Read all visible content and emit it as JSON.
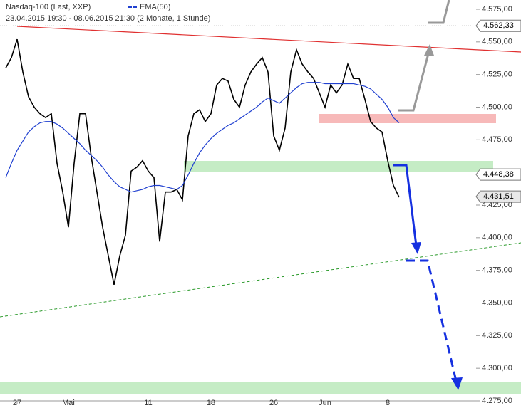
{
  "chart_data": {
    "type": "line",
    "title": "Nasdaq-100 (Last, XXP)",
    "subtitle": "23.04.2015 19:30 - 08.06.2015 21:30 (2 Monate, 1 Stunde)",
    "categories": [
      null,
      null,
      "27",
      null,
      null,
      null,
      null,
      null,
      null,
      null,
      null,
      "Mai",
      null,
      null,
      null,
      null,
      null,
      null,
      null,
      null,
      null,
      null,
      null,
      null,
      null,
      "11",
      null,
      null,
      null,
      null,
      null,
      null,
      null,
      null,
      null,
      null,
      "18",
      null,
      null,
      null,
      null,
      null,
      null,
      null,
      null,
      null,
      null,
      "26",
      null,
      null,
      null,
      null,
      null,
      null,
      null,
      null,
      "Jun",
      null,
      null,
      null,
      null,
      null,
      null,
      null,
      null,
      null,
      null,
      "8",
      null,
      null
    ],
    "series": [
      {
        "name": "Nasdaq-100",
        "color": "#000000",
        "values": [
          4530,
          4538,
          4552,
          4527,
          4508,
          4500,
          4495,
          4492,
          4495,
          4457,
          4435,
          4408,
          4457,
          4495,
          4495,
          4462,
          4435,
          4408,
          4386,
          4364,
          4386,
          4402,
          4451,
          4454,
          4459,
          4451,
          4446,
          4397,
          4435,
          4435,
          4437,
          4429,
          4478,
          4495,
          4498,
          4489,
          4495,
          4517,
          4522,
          4520,
          4506,
          4500,
          4517,
          4527,
          4533,
          4538,
          4527,
          4478,
          4467,
          4484,
          4527,
          4544,
          4533,
          4527,
          4522,
          4511,
          4500,
          4517,
          4511,
          4517,
          4533,
          4522,
          4522,
          4506,
          4489,
          4484,
          4481,
          4459,
          4440,
          4431
        ]
      },
      {
        "name": "EMA(50)",
        "color": "#2040d0",
        "values": [
          4446,
          4457,
          4467,
          4474,
          4481,
          4485,
          4488,
          4489,
          4489,
          4487,
          4484,
          4480,
          4476,
          4472,
          4467,
          4463,
          4459,
          4454,
          4448,
          4443,
          4439,
          4437,
          4435,
          4436,
          4437,
          4439,
          4440,
          4440,
          4439,
          4438,
          4437,
          4440,
          4448,
          4457,
          4465,
          4471,
          4476,
          4480,
          4483,
          4486,
          4488,
          4491,
          4494,
          4497,
          4500,
          4504,
          4507,
          4505,
          4503,
          4507,
          4511,
          4515,
          4518,
          4519,
          4519,
          4519,
          4518,
          4518,
          4518,
          4518,
          4518,
          4518,
          4517,
          4516,
          4514,
          4510,
          4506,
          4500,
          4492,
          4488
        ]
      }
    ],
    "ylim": [
      4275,
      4575
    ],
    "yticks": [
      {
        "value": 4275,
        "label": "4.275,00"
      },
      {
        "value": 4300,
        "label": "4.300,00"
      },
      {
        "value": 4325,
        "label": "4.325,00"
      },
      {
        "value": 4350,
        "label": "4.350,00"
      },
      {
        "value": 4375,
        "label": "4.375,00"
      },
      {
        "value": 4400,
        "label": "4.400,00"
      },
      {
        "value": 4425,
        "label": "4.425,00"
      },
      {
        "value": 4475,
        "label": "4.475,00"
      },
      {
        "value": 4500,
        "label": "4.500,00"
      },
      {
        "value": 4525,
        "label": "4.525,00"
      },
      {
        "value": 4550,
        "label": "4.550,00"
      },
      {
        "value": 4575,
        "label": "4.575,00"
      }
    ],
    "price_markers": [
      {
        "value": 4562.33,
        "label": "4.562,33"
      },
      {
        "value": 4448.38,
        "label": "4.448,38"
      },
      {
        "value": 4431.51,
        "label": "4.431,51"
      }
    ]
  }
}
